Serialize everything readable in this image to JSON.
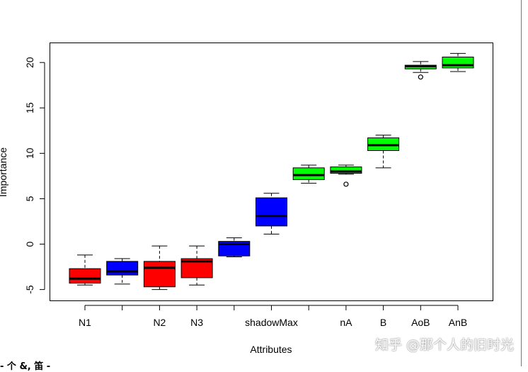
{
  "chart_data": {
    "type": "boxplot",
    "title": "",
    "xlabel": "Attributes",
    "ylabel": "Importance",
    "ylim": [
      -6.2,
      22.2
    ],
    "yticks": [
      -5,
      0,
      5,
      10,
      15,
      20
    ],
    "ytick_labels": [
      "-5",
      "0",
      "5",
      "10",
      "15",
      "20"
    ],
    "categories": [
      "N1",
      "",
      "N2",
      "N3",
      "",
      "shadowMax",
      "",
      "nA",
      "B",
      "AoB",
      "AnB"
    ],
    "colors": {
      "red": "#ff0000",
      "blue": "#0000ff",
      "green": "#00ff00"
    },
    "boxes": [
      {
        "label": "N1",
        "color": "red",
        "min": -4.5,
        "q1": -4.3,
        "median": -3.8,
        "q3": -2.7,
        "max": -1.2,
        "outliers": []
      },
      {
        "label": "",
        "color": "blue",
        "min": -4.4,
        "q1": -3.4,
        "median": -3.0,
        "q3": -1.9,
        "max": -1.6,
        "outliers": []
      },
      {
        "label": "N2",
        "color": "red",
        "min": -5.0,
        "q1": -4.7,
        "median": -2.6,
        "q3": -1.9,
        "max": -0.2,
        "outliers": []
      },
      {
        "label": "N3",
        "color": "red",
        "min": -4.5,
        "q1": -3.7,
        "median": -1.9,
        "q3": -1.6,
        "max": -0.2,
        "outliers": []
      },
      {
        "label": "",
        "color": "blue",
        "min": -1.4,
        "q1": -1.3,
        "median": 0.0,
        "q3": 0.3,
        "max": 0.7,
        "outliers": []
      },
      {
        "label": "shadowMax",
        "color": "blue",
        "min": 1.1,
        "q1": 2.0,
        "median": 3.1,
        "q3": 5.1,
        "max": 5.6,
        "outliers": []
      },
      {
        "label": "",
        "color": "green",
        "min": 6.7,
        "q1": 7.1,
        "median": 7.6,
        "q3": 8.4,
        "max": 8.7,
        "outliers": []
      },
      {
        "label": "nA",
        "color": "green",
        "min": 7.7,
        "q1": 7.8,
        "median": 8.0,
        "q3": 8.5,
        "max": 8.7,
        "outliers": [
          6.6
        ]
      },
      {
        "label": "B",
        "color": "green",
        "min": 8.4,
        "q1": 10.3,
        "median": 10.9,
        "q3": 11.7,
        "max": 12.0,
        "outliers": []
      },
      {
        "label": "AoB",
        "color": "green",
        "min": 18.9,
        "q1": 19.3,
        "median": 19.6,
        "q3": 19.7,
        "max": 20.1,
        "outliers": [
          18.4
        ]
      },
      {
        "label": "AnB",
        "color": "green",
        "min": 19.0,
        "q1": 19.4,
        "median": 19.7,
        "q3": 20.6,
        "max": 21.0,
        "outliers": []
      }
    ]
  },
  "watermark": "知乎 @那个人的旧时光",
  "footer_fragment": "- 个 &, 笛 -"
}
